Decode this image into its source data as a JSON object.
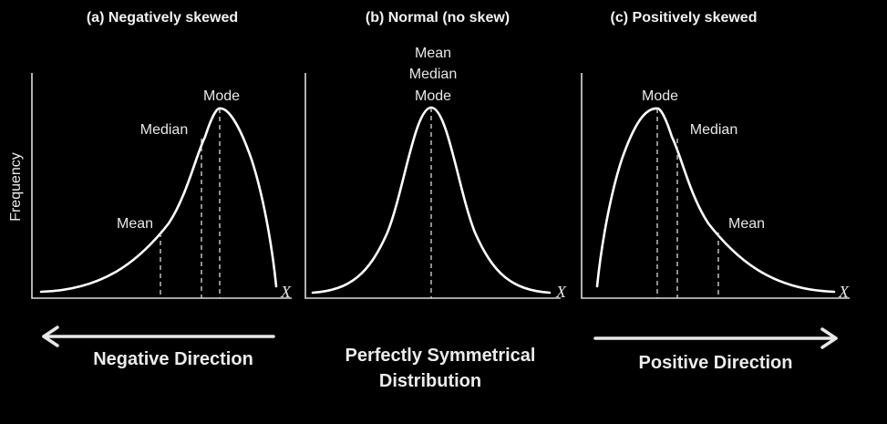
{
  "panels": [
    {
      "title": "(a) Negatively skewed",
      "labels": {
        "mode": "Mode",
        "median": "Median",
        "mean": "Mean"
      },
      "x_label": "X"
    },
    {
      "title": "(b) Normal (no skew)",
      "labels": {
        "mean": "Mean",
        "median": "Median",
        "mode": "Mode"
      },
      "x_label": "X"
    },
    {
      "title": "(c) Positively skewed",
      "labels": {
        "mode": "Mode",
        "median": "Median",
        "mean": "Mean"
      },
      "x_label": "X"
    }
  ],
  "y_label": "Frequency",
  "captions": {
    "left": "Negative Direction",
    "center_line1": "Perfectly Symmetrical",
    "center_line2": "Distribution",
    "right": "Positive Direction"
  },
  "colors": {
    "background": "#000000",
    "foreground": "#ffffff"
  }
}
